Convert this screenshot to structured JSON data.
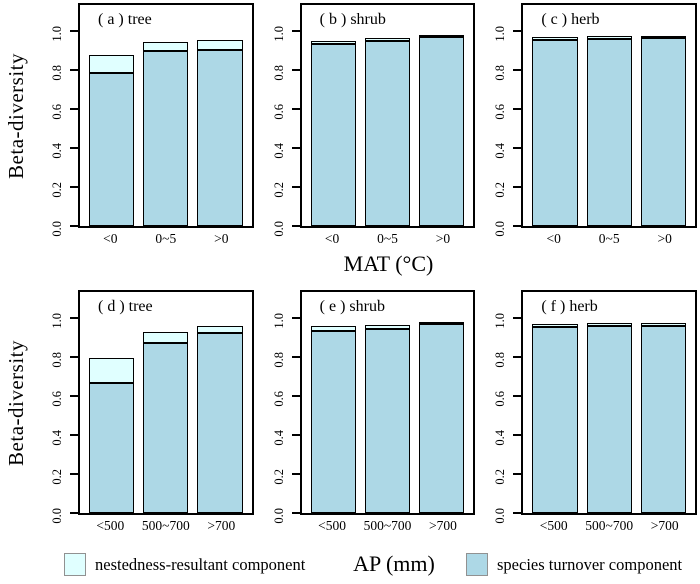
{
  "figure": {
    "ylabel": "Beta-diversity",
    "row1_xlabel": "MAT (°C)",
    "row2_xlabel": "AP (mm)",
    "legend": {
      "nestedness_label": "nestedness-resultant component",
      "turnover_label": "species turnover component"
    }
  },
  "colors": {
    "turnover_fill": "#ADD8E6",
    "nestedness_fill": "#E0FFFF",
    "bar_border": "#000000",
    "box_border": "#000000",
    "legend_swatch_border": "#919191",
    "background": "#FFFFFF"
  },
  "chart_data": {
    "type": "bar",
    "stacked": true,
    "grid": false,
    "legend_position": "bottom",
    "ylabel": "Beta-diversity",
    "ylim": [
      0,
      1.15
    ],
    "yticks": [
      "0.0",
      "0.2",
      "0.4",
      "0.6",
      "0.8",
      "1.0"
    ],
    "legend_entries": [
      "nestedness-resultant component",
      "species turnover component"
    ],
    "rows": [
      {
        "xlabel": "MAT (°C)",
        "categories": [
          "<0",
          "0~5",
          ">0"
        ],
        "panels": [
          {
            "id": "a",
            "label": "( a ) tree",
            "series": [
              {
                "name": "species turnover component",
                "values": [
                  0.785,
                  0.9,
                  0.905
                ]
              },
              {
                "name": "nestedness-resultant component",
                "values": [
                  0.09,
                  0.045,
                  0.05
                ]
              }
            ]
          },
          {
            "id": "b",
            "label": "( b ) shrub",
            "series": [
              {
                "name": "species turnover component",
                "values": [
                  0.935,
                  0.95,
                  0.97
                ]
              },
              {
                "name": "nestedness-resultant component",
                "values": [
                  0.015,
                  0.015,
                  0.008
                ]
              }
            ]
          },
          {
            "id": "c",
            "label": "( c ) herb",
            "series": [
              {
                "name": "species turnover component",
                "values": [
                  0.955,
                  0.96,
                  0.965
                ]
              },
              {
                "name": "nestedness-resultant component",
                "values": [
                  0.012,
                  0.012,
                  0.01
                ]
              }
            ]
          }
        ]
      },
      {
        "xlabel": "AP (mm)",
        "categories": [
          "<500",
          "500~700",
          ">700"
        ],
        "panels": [
          {
            "id": "d",
            "label": "( d ) tree",
            "series": [
              {
                "name": "species turnover component",
                "values": [
                  0.665,
                  0.87,
                  0.925
                ]
              },
              {
                "name": "nestedness-resultant component",
                "values": [
                  0.13,
                  0.06,
                  0.035
                ]
              }
            ]
          },
          {
            "id": "e",
            "label": "( e ) shrub",
            "series": [
              {
                "name": "species turnover component",
                "values": [
                  0.935,
                  0.945,
                  0.97
                ]
              },
              {
                "name": "nestedness-resultant component",
                "values": [
                  0.025,
                  0.02,
                  0.008
                ]
              }
            ]
          },
          {
            "id": "f",
            "label": "( f ) herb",
            "series": [
              {
                "name": "species turnover component",
                "values": [
                  0.955,
                  0.96,
                  0.96
                ]
              },
              {
                "name": "nestedness-resultant component",
                "values": [
                  0.012,
                  0.012,
                  0.015
                ]
              }
            ]
          }
        ]
      }
    ]
  }
}
